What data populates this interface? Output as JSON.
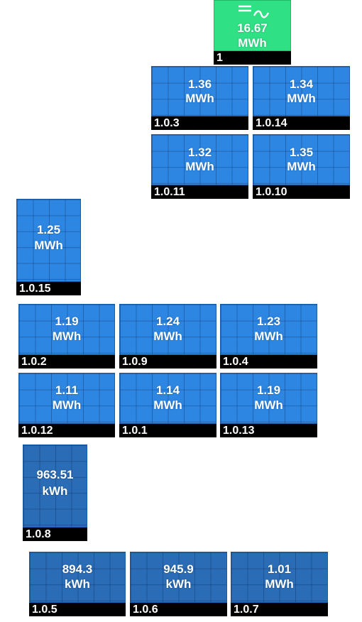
{
  "inverter": {
    "value": "16.67",
    "unit": "MWh",
    "label": "1",
    "icon": "inverter-icon"
  },
  "panels": [
    {
      "id": "p103",
      "value": "1.36",
      "unit": "MWh",
      "label": "1.0.3"
    },
    {
      "id": "p1014",
      "value": "1.34",
      "unit": "MWh",
      "label": "1.0.14"
    },
    {
      "id": "p1011",
      "value": "1.32",
      "unit": "MWh",
      "label": "1.0.11"
    },
    {
      "id": "p1010",
      "value": "1.35",
      "unit": "MWh",
      "label": "1.0.10"
    },
    {
      "id": "p1015",
      "value": "1.25",
      "unit": "MWh",
      "label": "1.0.15"
    },
    {
      "id": "p102",
      "value": "1.19",
      "unit": "MWh",
      "label": "1.0.2"
    },
    {
      "id": "p109",
      "value": "1.24",
      "unit": "MWh",
      "label": "1.0.9"
    },
    {
      "id": "p104",
      "value": "1.23",
      "unit": "MWh",
      "label": "1.0.4"
    },
    {
      "id": "p1012",
      "value": "1.11",
      "unit": "MWh",
      "label": "1.0.12"
    },
    {
      "id": "p101",
      "value": "1.14",
      "unit": "MWh",
      "label": "1.0.1"
    },
    {
      "id": "p1013",
      "value": "1.19",
      "unit": "MWh",
      "label": "1.0.13"
    },
    {
      "id": "p108",
      "value": "963.51",
      "unit": "kWh",
      "label": "1.0.8"
    },
    {
      "id": "p105",
      "value": "894.3",
      "unit": "kWh",
      "label": "1.0.5"
    },
    {
      "id": "p106",
      "value": "945.9",
      "unit": "kWh",
      "label": "1.0.6"
    },
    {
      "id": "p107",
      "value": "1.01",
      "unit": "MWh",
      "label": "1.0.7"
    }
  ],
  "colors": {
    "panel": "#2d86e2",
    "panel_dark": "#2a6cb5",
    "inverter": "#2fe085",
    "label_bg": "#000000"
  }
}
